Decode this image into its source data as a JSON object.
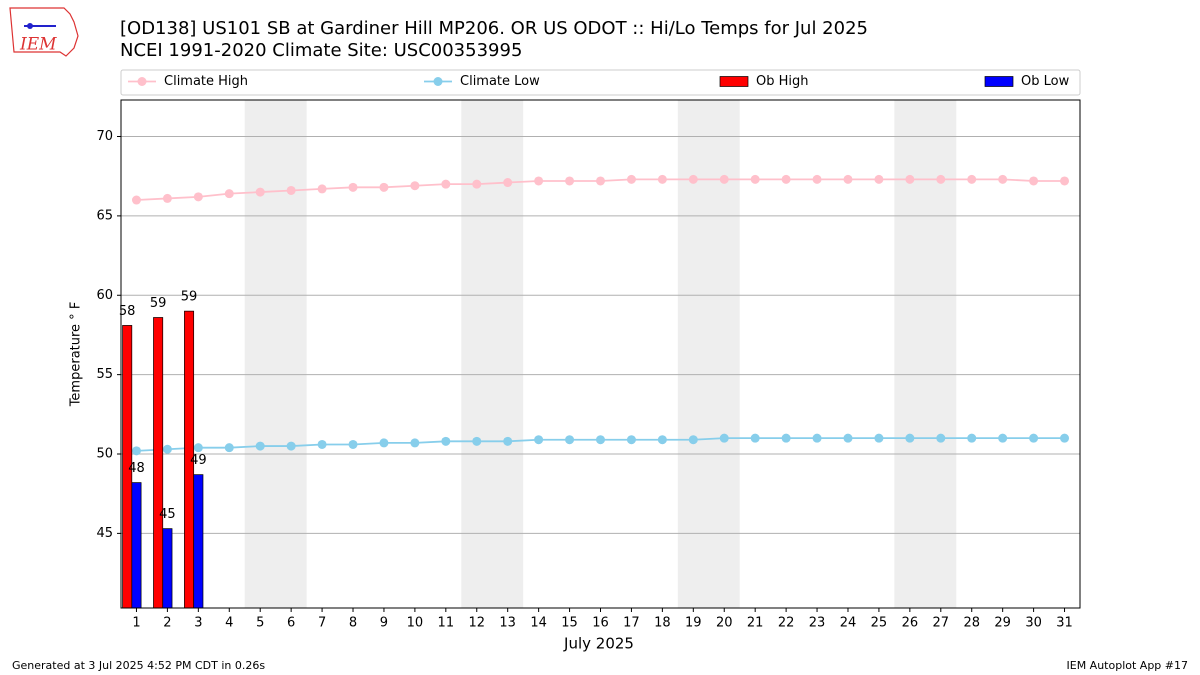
{
  "logo_text": "IEM",
  "footer_left": "Generated at 3 Jul 2025 4:52 PM CDT in 0.26s",
  "footer_right": "IEM Autoplot App #17",
  "chart_data": {
    "type": "bar_line",
    "title": "[OD138] US101 SB at Gardiner Hill MP206. OR US ODOT :: Hi/Lo Temps for Jul 2025",
    "subtitle": "NCEI 1991-2020 Climate Site: USC00353995",
    "xlabel": "July 2025",
    "ylabel": "Temperature ° F",
    "x": [
      1,
      2,
      3,
      4,
      5,
      6,
      7,
      8,
      9,
      10,
      11,
      12,
      13,
      14,
      15,
      16,
      17,
      18,
      19,
      20,
      21,
      22,
      23,
      24,
      25,
      26,
      27,
      28,
      29,
      30,
      31
    ],
    "xlim": [
      0.5,
      31.5
    ],
    "xticks": [
      1,
      2,
      3,
      4,
      5,
      6,
      7,
      8,
      9,
      10,
      11,
      12,
      13,
      14,
      15,
      16,
      17,
      18,
      19,
      20,
      21,
      22,
      23,
      24,
      25,
      26,
      27,
      28,
      29,
      30,
      31
    ],
    "ylim": [
      40.3,
      72.3
    ],
    "yticks": [
      45,
      50,
      55,
      60,
      65,
      70
    ],
    "grid": true,
    "legend": "top",
    "shaded_spans": [
      [
        4.5,
        6.5
      ],
      [
        11.5,
        13.5
      ],
      [
        18.5,
        20.5
      ],
      [
        25.5,
        27.5
      ]
    ],
    "shade_color": "#eeeeee",
    "series": [
      {
        "name": "Climate High",
        "kind": "line",
        "color": "#ffc0cb",
        "values": [
          66.0,
          66.1,
          66.2,
          66.4,
          66.5,
          66.6,
          66.7,
          66.8,
          66.8,
          66.9,
          67.0,
          67.0,
          67.1,
          67.2,
          67.2,
          67.2,
          67.3,
          67.3,
          67.3,
          67.3,
          67.3,
          67.3,
          67.3,
          67.3,
          67.3,
          67.3,
          67.3,
          67.3,
          67.3,
          67.2,
          67.2
        ]
      },
      {
        "name": "Climate Low",
        "kind": "line",
        "color": "#87ceeb",
        "values": [
          50.2,
          50.3,
          50.4,
          50.4,
          50.5,
          50.5,
          50.6,
          50.6,
          50.7,
          50.7,
          50.8,
          50.8,
          50.8,
          50.9,
          50.9,
          50.9,
          50.9,
          50.9,
          50.9,
          51.0,
          51.0,
          51.0,
          51.0,
          51.0,
          51.0,
          51.0,
          51.0,
          51.0,
          51.0,
          51.0,
          51.0
        ]
      },
      {
        "name": "Ob High",
        "kind": "bar",
        "color": "#ff0000",
        "values": [
          58.1,
          58.6,
          59.0,
          null,
          null,
          null,
          null,
          null,
          null,
          null,
          null,
          null,
          null,
          null,
          null,
          null,
          null,
          null,
          null,
          null,
          null,
          null,
          null,
          null,
          null,
          null,
          null,
          null,
          null,
          null,
          null
        ],
        "value_labels": [
          "58",
          "59",
          "59",
          null,
          null,
          null,
          null,
          null,
          null,
          null,
          null,
          null,
          null,
          null,
          null,
          null,
          null,
          null,
          null,
          null,
          null,
          null,
          null,
          null,
          null,
          null,
          null,
          null,
          null,
          null,
          null
        ]
      },
      {
        "name": "Ob Low",
        "kind": "bar",
        "color": "#0000ff",
        "values": [
          48.2,
          45.3,
          48.7,
          null,
          null,
          null,
          null,
          null,
          null,
          null,
          null,
          null,
          null,
          null,
          null,
          null,
          null,
          null,
          null,
          null,
          null,
          null,
          null,
          null,
          null,
          null,
          null,
          null,
          null,
          null,
          null
        ],
        "value_labels": [
          "48",
          "45",
          "49",
          null,
          null,
          null,
          null,
          null,
          null,
          null,
          null,
          null,
          null,
          null,
          null,
          null,
          null,
          null,
          null,
          null,
          null,
          null,
          null,
          null,
          null,
          null,
          null,
          null,
          null,
          null,
          null
        ]
      }
    ]
  }
}
